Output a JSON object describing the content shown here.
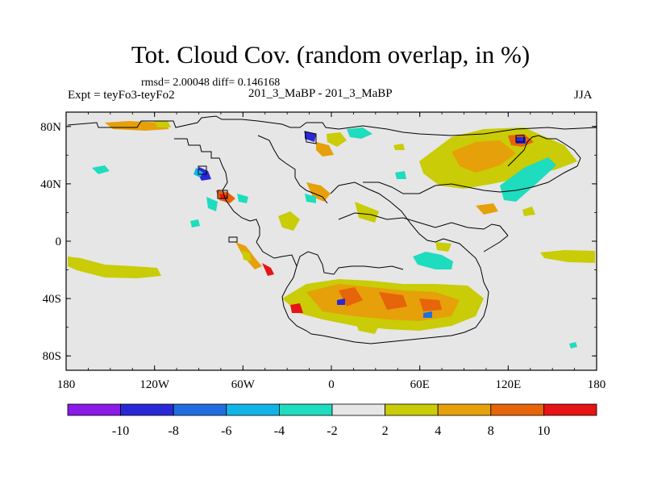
{
  "title": "Tot. Cloud Cov. (random overlap, in %)",
  "stats": "rmsd= 2.00048 diff= 0.146168",
  "expt": "Expt = teyFo3-teyFo2",
  "center_label": "201_3_MaBP - 201_3_MaBP",
  "season": "JJA",
  "axes": {
    "x_ticks": [
      "180",
      "120W",
      "60W",
      "0",
      "60E",
      "120E",
      "180"
    ],
    "y_ticks": [
      "80N",
      "40N",
      "0",
      "40S",
      "80S"
    ]
  },
  "colorbar": {
    "labels": [
      "-10",
      "-8",
      "-6",
      "-4",
      "-2",
      "2",
      "4",
      "8",
      "10"
    ],
    "colors": [
      "#8a1ae6",
      "#2a28d6",
      "#1f6fe0",
      "#12b4e8",
      "#1edcbe",
      "#e6e6e6",
      "#c9cc06",
      "#e6a00a",
      "#e6640a",
      "#e61414"
    ]
  },
  "palette": {
    "land_bg": "#e6e6e6",
    "coast": "#000000"
  }
}
